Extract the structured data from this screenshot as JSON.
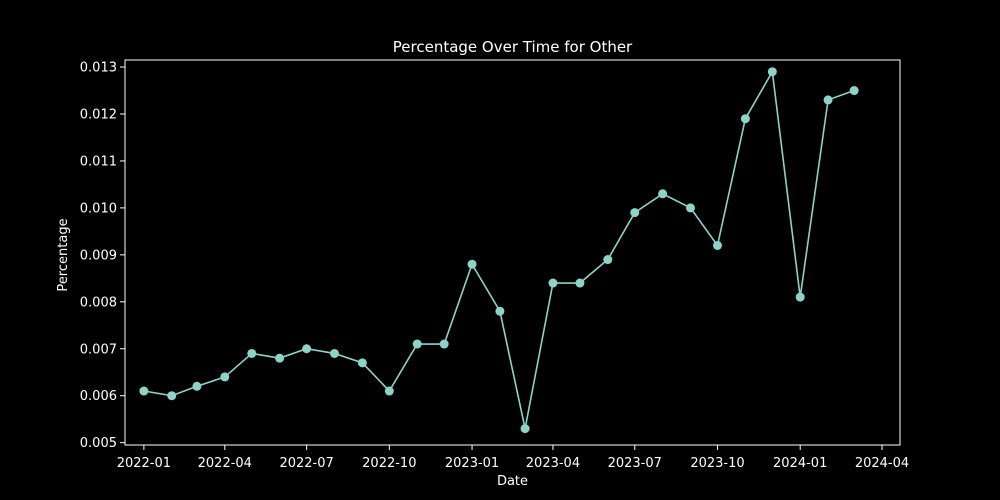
{
  "chart_data": {
    "type": "line",
    "title": "Percentage Over Time for Other",
    "xlabel": "Date",
    "ylabel": "Percentage",
    "x_ticks": [
      "2022-01",
      "2022-04",
      "2022-07",
      "2022-10",
      "2023-01",
      "2023-04",
      "2023-07",
      "2023-10",
      "2024-01",
      "2024-04"
    ],
    "y_ticks": [
      "0.005",
      "0.006",
      "0.007",
      "0.008",
      "0.009",
      "0.010",
      "0.011",
      "0.012",
      "0.013"
    ],
    "ylim": [
      0.00495,
      0.01315
    ],
    "xlim": [
      "2021-12-11",
      "2024-04-21"
    ],
    "grid": false,
    "legend": "none",
    "colors": {
      "background": "#000000",
      "line": "#8dd3c7",
      "axes": "#ffffff"
    },
    "series": [
      {
        "x": [
          "2022-01-01",
          "2022-02-01",
          "2022-03-01",
          "2022-04-01",
          "2022-05-01",
          "2022-06-01",
          "2022-07-01",
          "2022-08-01",
          "2022-09-01",
          "2022-10-01",
          "2022-11-01",
          "2022-12-01",
          "2023-01-01",
          "2023-02-01",
          "2023-03-01",
          "2023-04-01",
          "2023-05-01",
          "2023-06-01",
          "2023-07-01",
          "2023-08-01",
          "2023-09-01",
          "2023-10-01",
          "2023-11-01",
          "2023-12-01",
          "2024-01-01",
          "2024-02-01",
          "2024-03-01"
        ],
        "values": [
          0.0061,
          0.006,
          0.0062,
          0.0064,
          0.0069,
          0.0068,
          0.007,
          0.0069,
          0.0067,
          0.0061,
          0.0071,
          0.0071,
          0.0088,
          0.0078,
          0.0053,
          0.0084,
          0.0084,
          0.0089,
          0.0099,
          0.0103,
          0.01,
          0.0092,
          0.0119,
          0.0129,
          0.0081,
          0.0123,
          0.0125
        ]
      }
    ]
  }
}
